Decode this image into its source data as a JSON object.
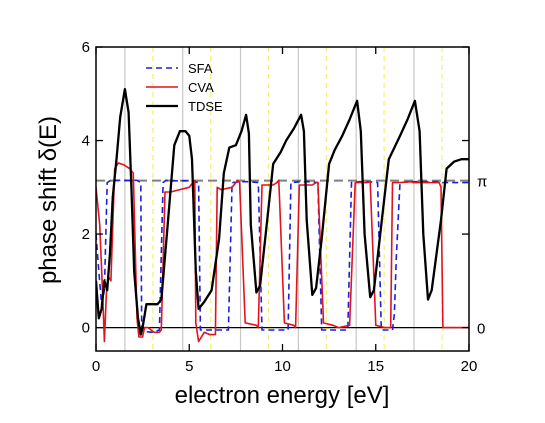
{
  "chart_data": {
    "type": "line",
    "xlabel": "electron energy [eV]",
    "ylabel": "phase shift δ(E)",
    "xlim": [
      0,
      20
    ],
    "ylim": [
      -0.5,
      6
    ],
    "xticks": [
      0,
      5,
      10,
      15,
      20
    ],
    "xtick_labels": [
      "0",
      "5",
      "10",
      "15",
      "20"
    ],
    "yticks": [
      0,
      2,
      4,
      6
    ],
    "ytick_labels": [
      "0",
      "2",
      "4",
      "6"
    ],
    "grid": false,
    "legend_position": "top-left",
    "right_axis_labels": [
      {
        "text": "π",
        "y": 3.1416
      },
      {
        "text": "0",
        "y": 0
      }
    ],
    "reference_lines": [
      {
        "y": 3.1416,
        "style": "dashed",
        "color": "#808080"
      },
      {
        "y": 0,
        "style": "solid",
        "color": "#000000"
      }
    ],
    "vertical_lines_solid": {
      "color": "#c8c8c8",
      "x": [
        1.55,
        4.65,
        7.75,
        10.85,
        13.95,
        17.05
      ]
    },
    "vertical_lines_dashed": {
      "color": "#f0f07a",
      "x": [
        3.05,
        6.15,
        9.25,
        12.35,
        15.45,
        18.55
      ]
    },
    "series": [
      {
        "name": "SFA",
        "color": "#1f1fd6",
        "style": "dashed",
        "x": [
          0.0,
          0.15,
          0.3,
          0.45,
          0.6,
          0.8,
          1.2,
          1.6,
          2.0,
          2.2,
          2.4,
          2.45,
          2.6,
          3.0,
          3.4,
          3.6,
          3.75,
          3.9,
          4.5,
          5.0,
          5.5,
          5.6,
          5.75,
          6.2,
          6.6,
          7.1,
          7.3,
          7.8,
          8.2,
          8.7,
          8.9,
          9.4,
          9.8,
          10.3,
          10.45,
          11.0,
          11.4,
          11.9,
          12.1,
          12.6,
          13.0,
          13.5,
          13.7,
          14.1,
          14.6,
          15.1,
          15.3,
          15.6,
          15.9,
          16.0,
          16.1,
          16.3,
          16.8,
          17.5,
          18.3,
          18.5,
          19.0,
          19.5,
          20.0
        ],
        "y": [
          2.0,
          1.2,
          0.5,
          0.8,
          3.1,
          3.15,
          3.15,
          3.15,
          3.15,
          3.15,
          3.1,
          -0.05,
          -0.08,
          -0.1,
          -0.05,
          3.1,
          3.15,
          3.14,
          3.14,
          3.14,
          3.1,
          -0.05,
          -0.05,
          -0.05,
          -0.05,
          -0.05,
          3.1,
          3.12,
          3.12,
          3.1,
          -0.05,
          -0.05,
          -0.05,
          -0.05,
          3.1,
          3.12,
          3.12,
          3.1,
          -0.05,
          -0.05,
          -0.05,
          -0.05,
          3.1,
          3.12,
          3.12,
          3.1,
          -0.05,
          -0.05,
          -0.05,
          0.3,
          1.5,
          3.1,
          3.12,
          3.12,
          3.12,
          3.1,
          3.1,
          3.1,
          3.1
        ]
      },
      {
        "name": "CVA",
        "color": "#e0141e",
        "style": "solid",
        "x": [
          0.0,
          0.2,
          0.35,
          0.45,
          0.55,
          0.65,
          0.8,
          1.0,
          1.2,
          1.5,
          1.8,
          2.0,
          2.2,
          2.3,
          2.5,
          2.6,
          2.8,
          3.1,
          3.4,
          3.5,
          3.7,
          4.0,
          4.5,
          5.0,
          5.3,
          5.35,
          5.5,
          5.8,
          6.1,
          6.4,
          6.5,
          6.7,
          7.3,
          7.6,
          7.7,
          8.0,
          8.6,
          8.7,
          8.9,
          9.5,
          9.7,
          9.8,
          10.1,
          10.6,
          10.7,
          10.9,
          11.6,
          11.8,
          11.9,
          12.2,
          12.7,
          13.0,
          13.6,
          13.9,
          14.1,
          14.5,
          14.7,
          15.0,
          15.5,
          15.8,
          15.9,
          16.1,
          16.3,
          16.9,
          17.0,
          17.6,
          18.0,
          18.4,
          18.5,
          18.6,
          19.0,
          19.5,
          20.0
        ],
        "y": [
          3.0,
          2.2,
          0.8,
          -0.3,
          0.7,
          1.1,
          1.0,
          3.4,
          3.52,
          3.48,
          3.4,
          3.3,
          0.2,
          -0.2,
          -0.2,
          0.0,
          0.0,
          -0.1,
          -0.1,
          -0.05,
          2.9,
          2.9,
          2.95,
          3.0,
          3.15,
          0.1,
          -0.3,
          -0.1,
          -0.15,
          -0.15,
          3.0,
          2.95,
          3.0,
          3.15,
          3.1,
          0.1,
          0.05,
          0.0,
          3.05,
          3.05,
          3.1,
          3.15,
          0.1,
          0.05,
          0.0,
          3.05,
          3.05,
          3.1,
          3.1,
          0.1,
          0.05,
          0.0,
          0.05,
          3.1,
          3.1,
          3.1,
          3.12,
          0.05,
          0.0,
          0.0,
          3.1,
          3.1,
          3.1,
          3.12,
          3.1,
          3.1,
          3.1,
          3.1,
          3.0,
          0.0,
          0.0,
          0.0,
          0.0
        ]
      },
      {
        "name": "TDSE",
        "color": "#000000",
        "style": "solid",
        "x": [
          0.0,
          0.15,
          0.3,
          0.45,
          0.6,
          0.75,
          0.9,
          1.1,
          1.3,
          1.55,
          1.75,
          1.9,
          2.05,
          2.25,
          2.4,
          2.5,
          2.7,
          3.0,
          3.3,
          3.5,
          3.8,
          4.2,
          4.5,
          4.8,
          5.0,
          5.15,
          5.35,
          5.5,
          5.8,
          6.2,
          6.6,
          6.85,
          7.15,
          7.5,
          7.8,
          8.05,
          8.2,
          8.3,
          8.6,
          8.8,
          9.1,
          9.5,
          9.9,
          10.2,
          10.6,
          11.0,
          11.15,
          11.3,
          11.6,
          11.8,
          12.1,
          12.5,
          12.8,
          13.2,
          13.6,
          14.0,
          14.2,
          14.4,
          14.7,
          14.9,
          15.3,
          15.7,
          16.0,
          16.3,
          16.7,
          17.1,
          17.35,
          17.55,
          17.8,
          18.0,
          18.5,
          18.8,
          19.2,
          19.6,
          20.0
        ],
        "y": [
          1.0,
          0.2,
          0.4,
          1.0,
          0.8,
          1.6,
          2.8,
          3.6,
          4.5,
          5.1,
          4.6,
          3.0,
          1.2,
          0.2,
          -0.15,
          0.0,
          0.5,
          0.5,
          0.5,
          0.6,
          2.0,
          3.9,
          4.2,
          4.2,
          4.1,
          3.6,
          1.2,
          0.4,
          0.55,
          0.8,
          1.9,
          3.3,
          3.85,
          3.9,
          4.2,
          4.55,
          4.15,
          2.2,
          0.75,
          0.9,
          2.0,
          3.5,
          3.75,
          4.0,
          4.25,
          4.55,
          4.2,
          2.3,
          0.7,
          0.85,
          1.9,
          3.5,
          3.8,
          4.1,
          4.45,
          4.85,
          4.2,
          2.0,
          0.65,
          0.8,
          2.2,
          3.6,
          3.85,
          4.1,
          4.45,
          4.85,
          4.2,
          2.0,
          0.6,
          0.8,
          2.3,
          3.4,
          3.55,
          3.6,
          3.6
        ]
      }
    ]
  }
}
